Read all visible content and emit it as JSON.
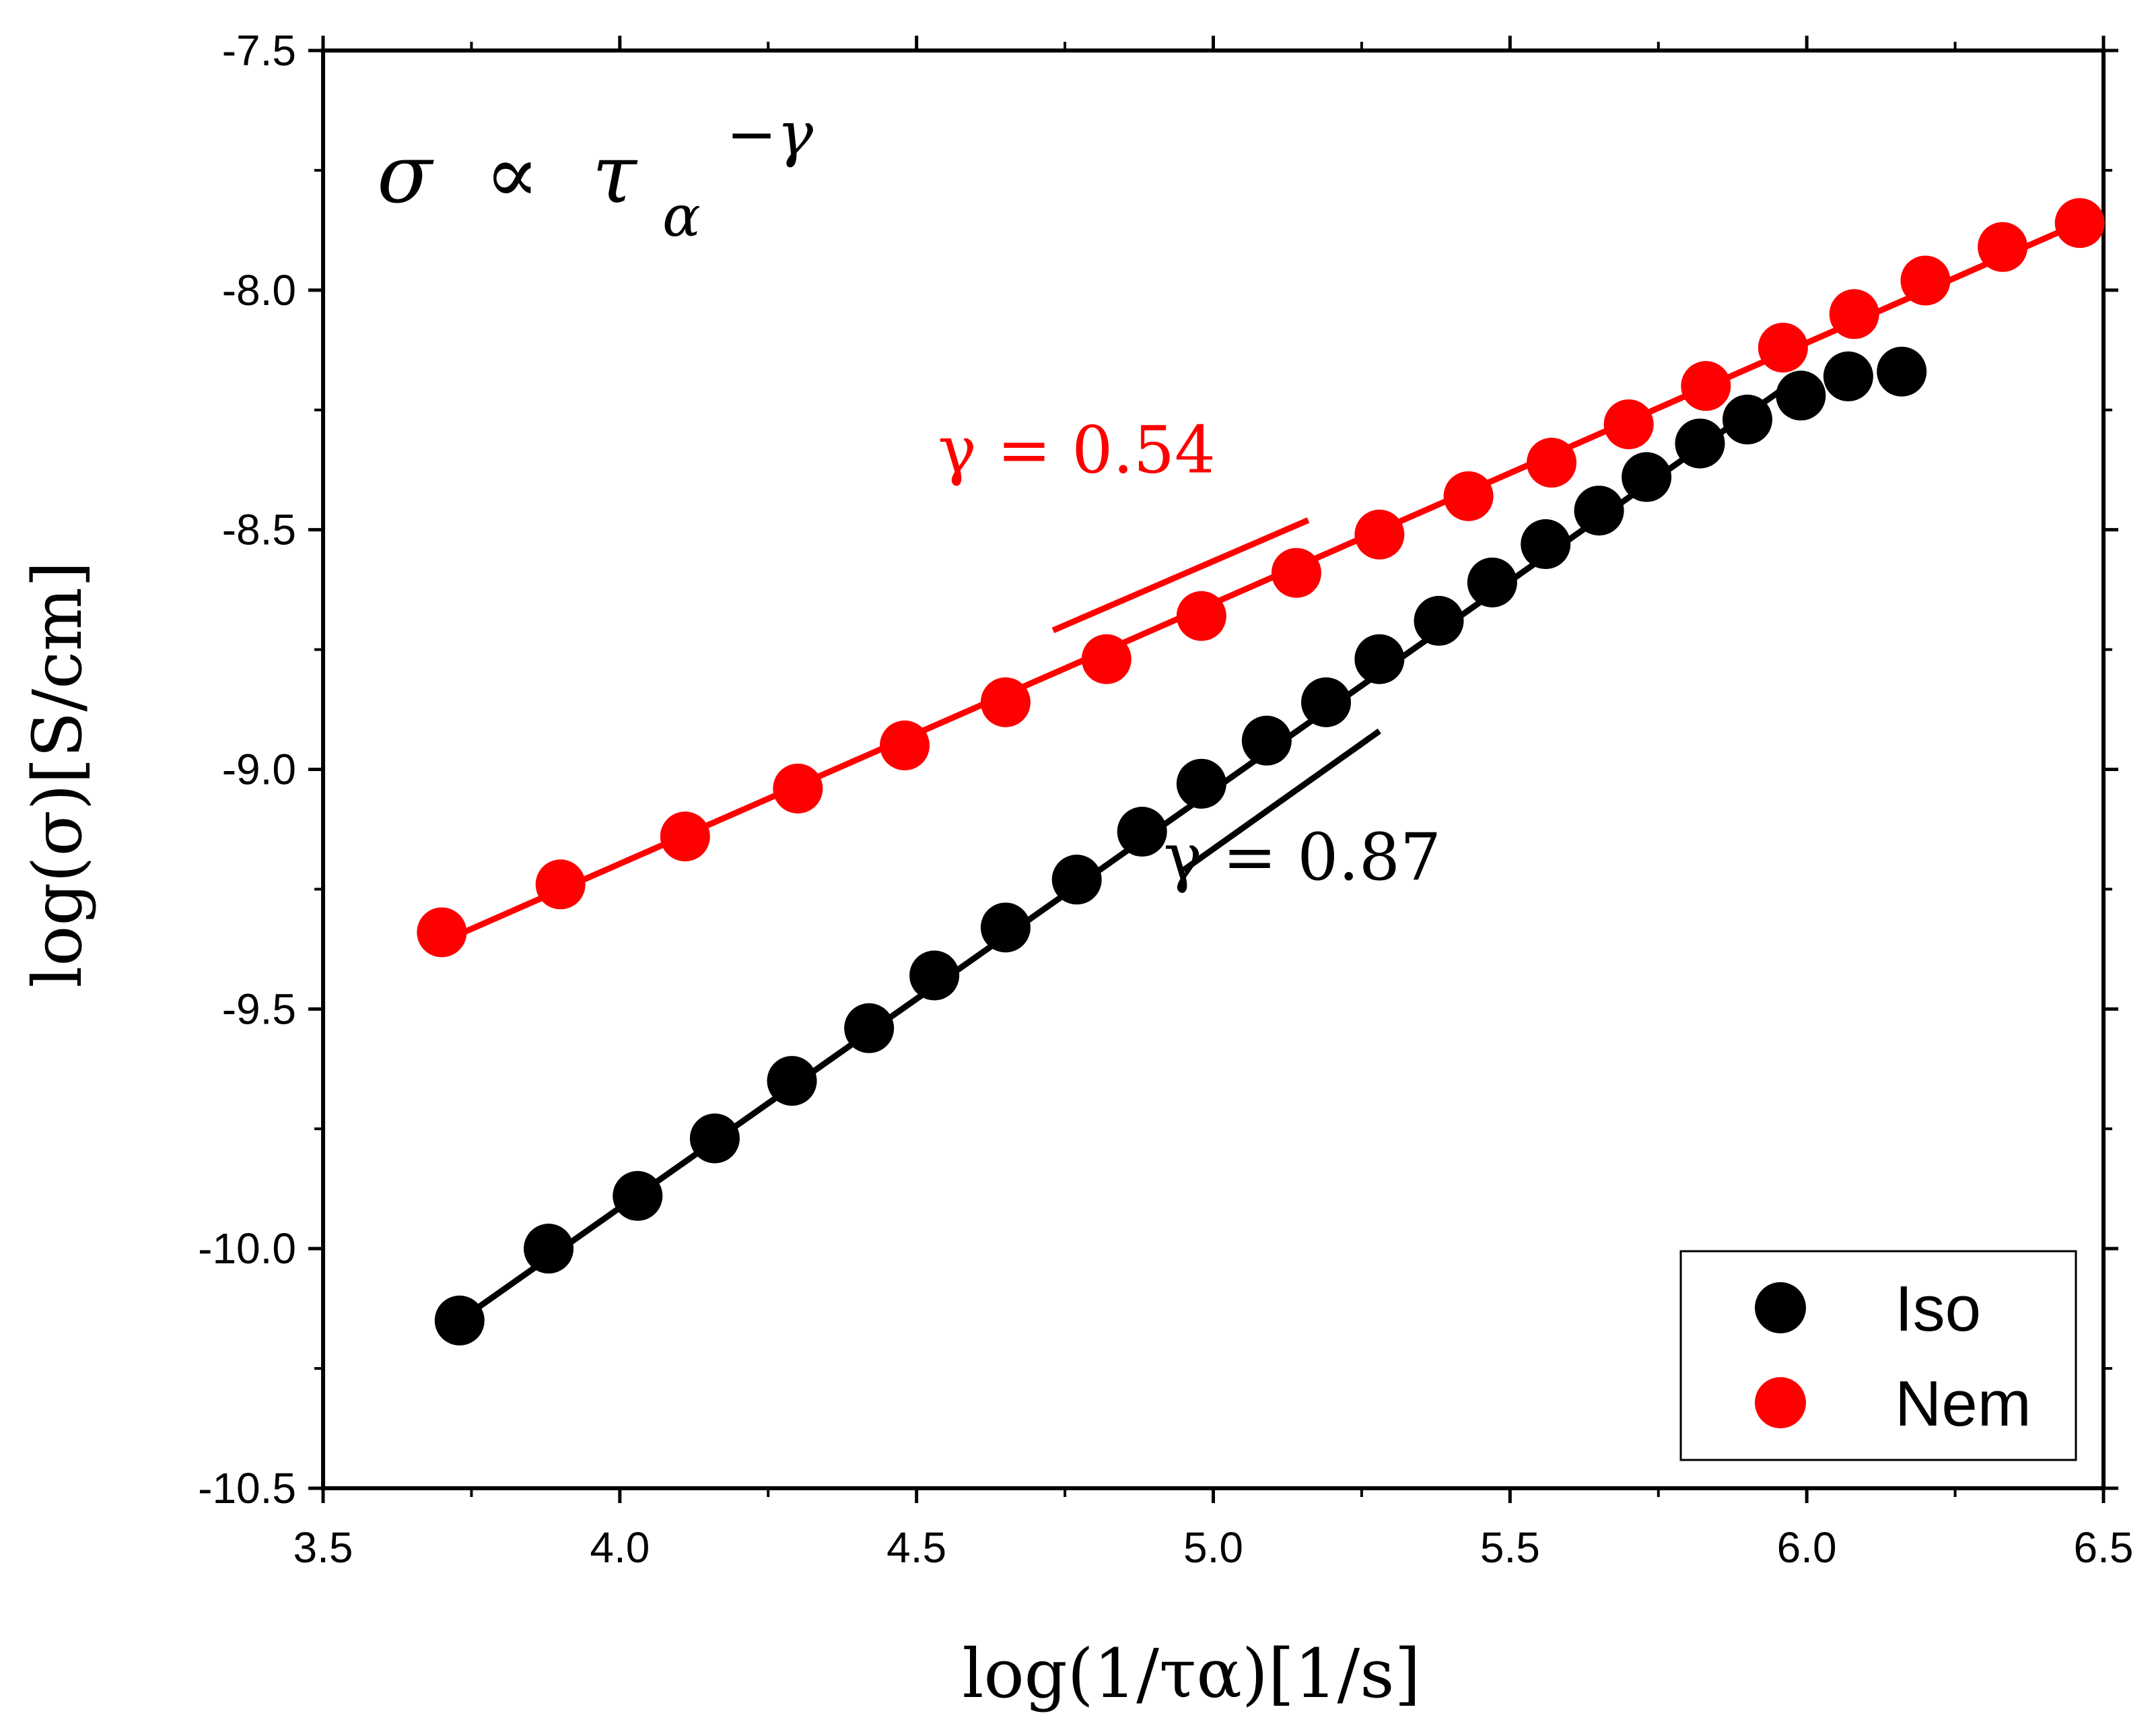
{
  "chart_data": {
    "type": "scatter",
    "title": "",
    "formula": {
      "sigma": "σ",
      "propto": "∝",
      "tau": "τ",
      "alpha": "α",
      "exponent": "−γ"
    },
    "xlabel": "log(1/τα)[1/s]",
    "ylabel": "log(σ)[S/cm]",
    "xlim": [
      3.5,
      6.5
    ],
    "ylim": [
      -10.5,
      -7.5
    ],
    "xticks": [
      3.5,
      4.0,
      4.5,
      5.0,
      5.5,
      6.0,
      6.5
    ],
    "xtick_labels": [
      "3.5",
      "4.0",
      "4.5",
      "5.0",
      "5.5",
      "6.0",
      "6.5"
    ],
    "yticks": [
      -7.5,
      -8.0,
      -8.5,
      -9.0,
      -9.5,
      -10.0,
      -10.5
    ],
    "ytick_labels": [
      "-7.5",
      "-8.0",
      "-8.5",
      "-9.0",
      "-9.5",
      "-10.0",
      "-10.5"
    ],
    "legend_position": "bottom-right",
    "series": [
      {
        "name": "Iso",
        "color": "#000000",
        "x": [
          3.73,
          3.88,
          4.03,
          4.16,
          4.29,
          4.42,
          4.53,
          4.65,
          4.77,
          4.88,
          4.98,
          5.09,
          5.19,
          5.28,
          5.38,
          5.47,
          5.56,
          5.65,
          5.73,
          5.82,
          5.9,
          5.99,
          6.07,
          6.16
        ],
        "y": [
          -10.15,
          -10.0,
          -9.89,
          -9.77,
          -9.65,
          -9.54,
          -9.43,
          -9.33,
          -9.23,
          -9.13,
          -9.03,
          -8.94,
          -8.86,
          -8.77,
          -8.69,
          -8.61,
          -8.53,
          -8.46,
          -8.39,
          -8.32,
          -8.27,
          -8.22,
          -8.18,
          -8.17
        ],
        "fit": {
          "x": [
            3.73,
            5.99
          ],
          "y": [
            -10.15,
            -8.18
          ]
        }
      },
      {
        "name": "Nem",
        "color": "#ff0000",
        "x": [
          3.7,
          3.9,
          4.11,
          4.3,
          4.48,
          4.65,
          4.82,
          4.98,
          5.14,
          5.28,
          5.43,
          5.57,
          5.7,
          5.83,
          5.96,
          6.08,
          6.2,
          6.33,
          6.46
        ],
        "y": [
          -9.34,
          -9.24,
          -9.14,
          -9.04,
          -8.95,
          -8.86,
          -8.77,
          -8.68,
          -8.59,
          -8.51,
          -8.43,
          -8.36,
          -8.28,
          -8.2,
          -8.12,
          -8.05,
          -7.98,
          -7.91,
          -7.86
        ],
        "fit": {
          "x": [
            3.7,
            6.46
          ],
          "y": [
            -9.36,
            -7.86
          ]
        }
      }
    ],
    "annotations": [
      {
        "label": "γ = 0.54",
        "color": "#ff0000",
        "anchor_x": 4.77,
        "anchor_y": -8.38,
        "guide": {
          "x": [
            4.73,
            5.16
          ],
          "y": [
            -8.71,
            -8.48
          ]
        }
      },
      {
        "label": "γ = 0.87",
        "color": "#000000",
        "anchor_x": 5.15,
        "anchor_y": -9.23,
        "guide": {
          "x": [
            4.95,
            5.28
          ],
          "y": [
            -9.21,
            -8.92
          ]
        }
      }
    ]
  }
}
